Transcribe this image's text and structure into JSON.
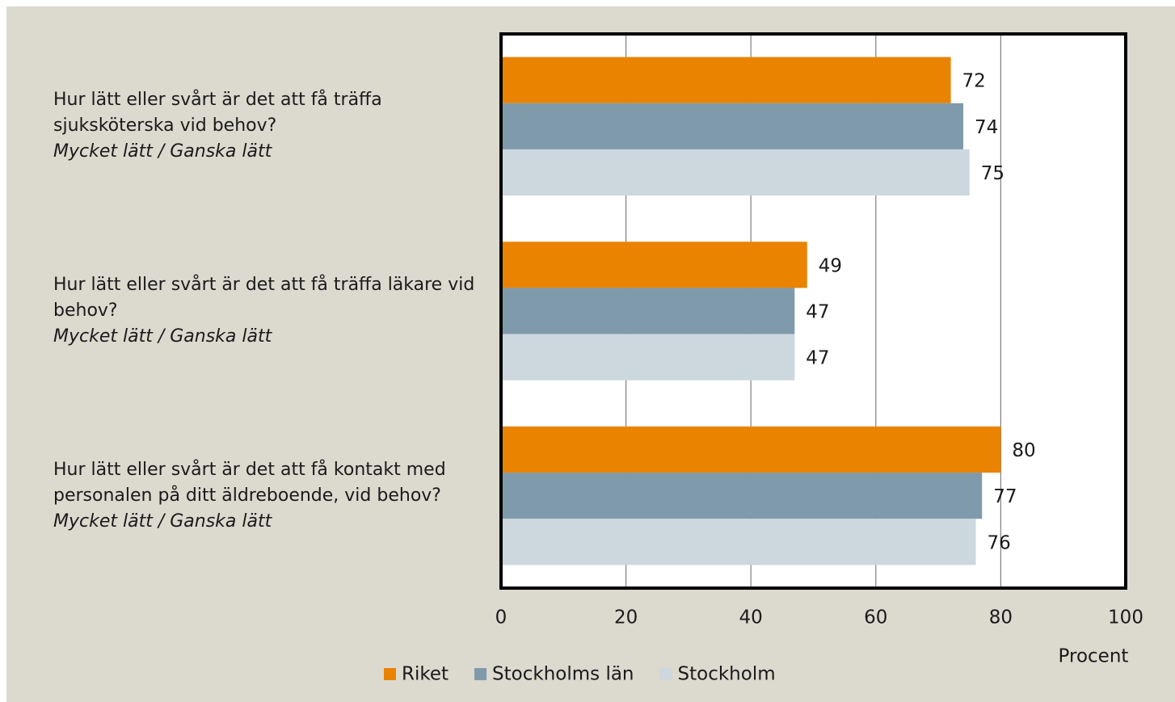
{
  "chart_data": {
    "type": "barh",
    "categories": [
      "Hur lätt eller svårt är det att få träffa sjuksköterska vid behov?",
      "Hur lätt eller svårt är det att få träffa läkare vid behov?",
      "Hur lätt eller svårt är det att få kontakt med personalen på ditt äldreboende, vid behov?"
    ],
    "category_notes": [
      "Mycket lätt / Ganska lätt",
      "Mycket lätt / Ganska lätt",
      "Mycket lätt / Ganska lätt"
    ],
    "series": [
      {
        "name": "Riket",
        "color": "#e98300",
        "values": [
          72,
          49,
          80
        ]
      },
      {
        "name": "Stockholms län",
        "color": "#7f9aab",
        "values": [
          74,
          47,
          77
        ]
      },
      {
        "name": "Stockholm",
        "color": "#cdd7de",
        "values": [
          75,
          47,
          76
        ]
      }
    ],
    "xlim": [
      0,
      100
    ],
    "xticks": [
      0,
      20,
      40,
      60,
      80,
      100
    ],
    "xlabel": "Procent",
    "grid": true,
    "legend": "bottom"
  }
}
